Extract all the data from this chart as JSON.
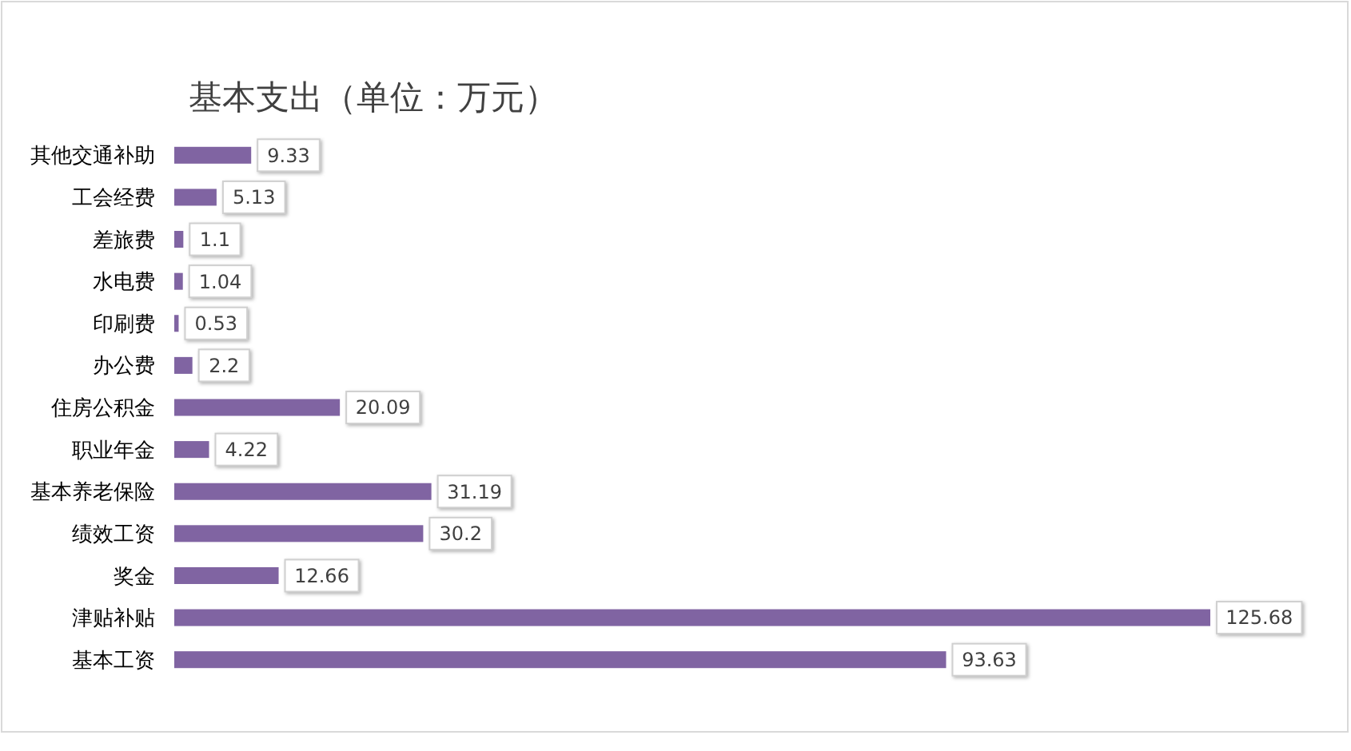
{
  "chart_data": {
    "type": "bar",
    "orientation": "horizontal",
    "title": "基本支出（单位：万元）",
    "categories": [
      "其他交通补助",
      "工会经费",
      "差旅费",
      "水电费",
      "印刷费",
      "办公费",
      "住房公积金",
      "职业年金",
      "基本养老保险",
      "绩效工资",
      "奖金",
      "津贴补贴",
      "基本工资"
    ],
    "values": [
      9.33,
      5.13,
      1.1,
      1.04,
      0.53,
      2.2,
      20.09,
      4.22,
      31.19,
      30.2,
      12.66,
      125.68,
      93.63
    ],
    "color": "#8064a2",
    "data_labels": true
  }
}
